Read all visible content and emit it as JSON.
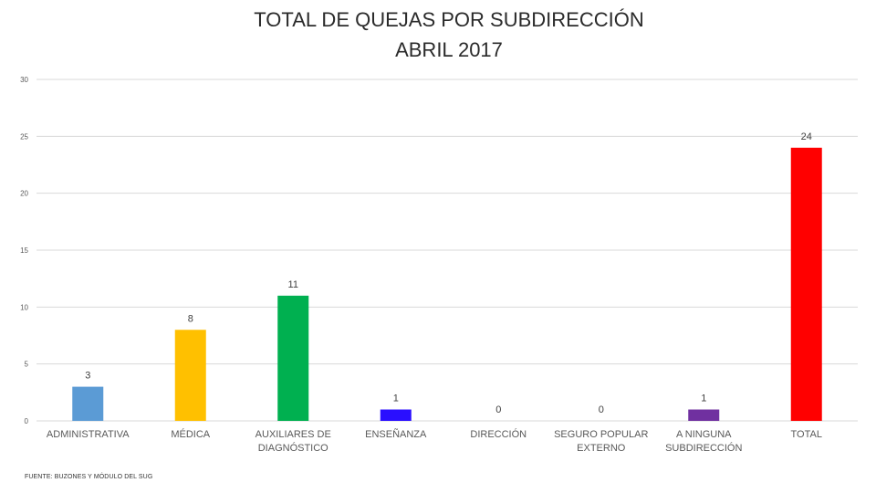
{
  "chart_data": {
    "type": "bar",
    "title": "TOTAL DE QUEJAS POR SUBDIRECCIÓN",
    "subtitle": "ABRIL 2017",
    "categories": [
      [
        "ADMINISTRATIVA"
      ],
      [
        "MÉDICA"
      ],
      [
        "AUXILIARES DE",
        "DIAGNÓSTICO"
      ],
      [
        "ENSEÑANZA"
      ],
      [
        "DIRECCIÓN"
      ],
      [
        "SEGURO POPULAR",
        "EXTERNO"
      ],
      [
        "A NINGUNA",
        "SUBDIRECCIÓN"
      ],
      [
        "TOTAL"
      ]
    ],
    "values": [
      3,
      8,
      11,
      1,
      0,
      0,
      1,
      24
    ],
    "data_labels": [
      "3",
      "8",
      "11",
      "1",
      "0",
      "0",
      "1",
      "24"
    ],
    "colors": [
      "#5b9bd5",
      "#ffc000",
      "#00b050",
      "#2a0fff",
      "#2a0fff",
      "#2a0fff",
      "#7030a0",
      "#ff0000"
    ],
    "ylim": [
      0,
      30
    ],
    "yticks": [
      0,
      5,
      10,
      15,
      20,
      25,
      30
    ],
    "ytick_labels": [
      "0",
      "5",
      "10",
      "15",
      "20",
      "25",
      "30"
    ],
    "xlabel": "",
    "ylabel": "",
    "grid": true,
    "legend": "none"
  },
  "footer": {
    "source": "FUENTE: BUZONES Y MÓDULO DEL SUG"
  }
}
